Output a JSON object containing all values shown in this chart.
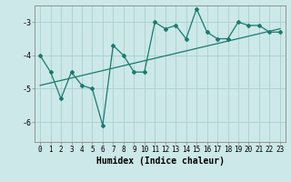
{
  "x": [
    0,
    1,
    2,
    3,
    4,
    5,
    6,
    7,
    8,
    9,
    10,
    11,
    12,
    13,
    14,
    15,
    16,
    17,
    18,
    19,
    20,
    21,
    22,
    23
  ],
  "y": [
    -4.0,
    -4.5,
    -5.3,
    -4.5,
    -4.9,
    -5.0,
    -6.1,
    -3.7,
    -4.0,
    -4.5,
    -4.5,
    -3.0,
    -3.2,
    -3.1,
    -3.5,
    -2.6,
    -3.3,
    -3.5,
    -3.5,
    -3.0,
    -3.1,
    -3.1,
    -3.3,
    -3.3
  ],
  "trend_x": [
    0,
    23
  ],
  "trend_y": [
    -4.9,
    -3.2
  ],
  "line_color": "#1a7a6e",
  "bg_color": "#cce8e8",
  "grid_color": "#aacfcf",
  "axis_color": "#888888",
  "xlabel": "Humidex (Indice chaleur)",
  "yticks": [
    -6,
    -5,
    -4,
    -3
  ],
  "xtick_labels": [
    "0",
    "1",
    "2",
    "3",
    "4",
    "5",
    "6",
    "7",
    "8",
    "9",
    "10",
    "11",
    "12",
    "13",
    "14",
    "15",
    "16",
    "17",
    "18",
    "19",
    "20",
    "21",
    "22",
    "23"
  ],
  "ylim": [
    -6.6,
    -2.5
  ],
  "xlim": [
    -0.5,
    23.5
  ],
  "tick_fontsize": 5.5,
  "label_fontsize": 7
}
